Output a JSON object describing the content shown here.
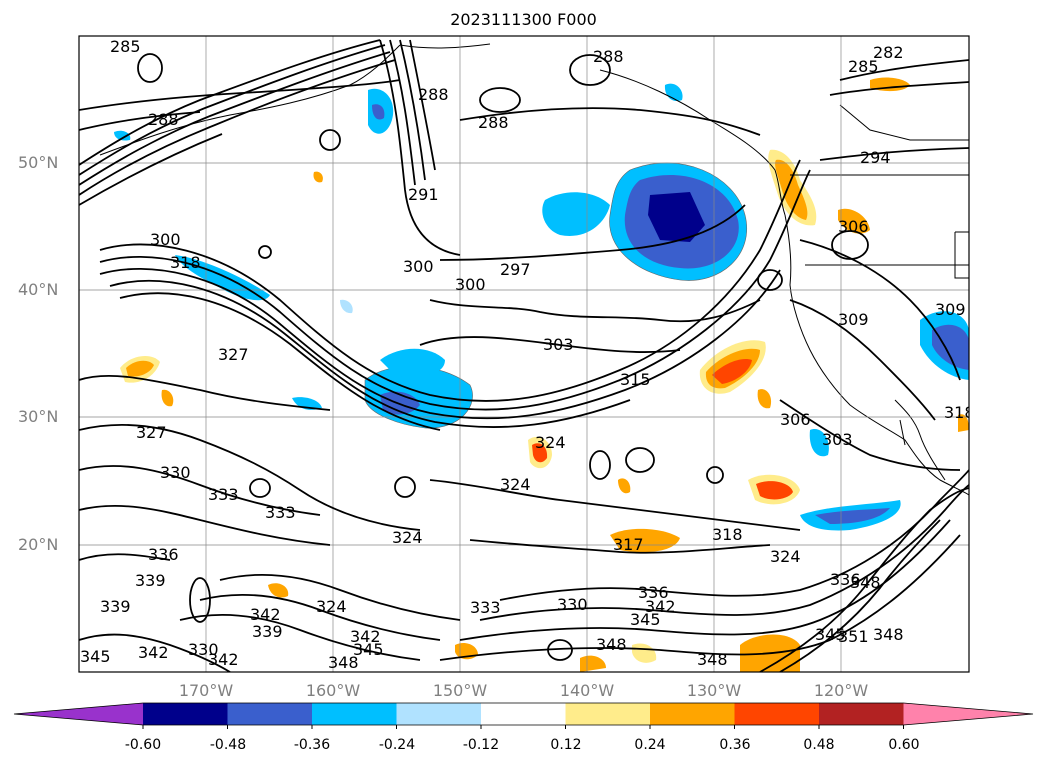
{
  "title": "2023111300 F000",
  "lat_labels": [
    "50°N",
    "40°N",
    "30°N",
    "20°N"
  ],
  "lon_labels": [
    "170°W",
    "160°W",
    "150°W",
    "140°W",
    "130°W",
    "120°W"
  ],
  "colorbar": {
    "ticks": [
      "-0.60",
      "-0.48",
      "-0.36",
      "-0.24",
      "-0.12",
      "0.12",
      "0.24",
      "0.36",
      "0.48",
      "0.60"
    ],
    "colors": [
      "#9932cc",
      "#00008b",
      "#3a5fcd",
      "#00bfff",
      "#b0e2ff",
      "#ffffff",
      "#ffec8b",
      "#ffa500",
      "#ff4500",
      "#b22222",
      "#ff82ab"
    ]
  },
  "contour_labels": [
    {
      "text": "285"
    },
    {
      "text": "282"
    },
    {
      "text": "285"
    },
    {
      "text": "288"
    },
    {
      "text": "288"
    },
    {
      "text": "288"
    },
    {
      "text": "288"
    },
    {
      "text": "294"
    },
    {
      "text": "291"
    },
    {
      "text": "300"
    },
    {
      "text": "300"
    },
    {
      "text": "300"
    },
    {
      "text": "297"
    },
    {
      "text": "306"
    },
    {
      "text": "309"
    },
    {
      "text": "303"
    },
    {
      "text": "315"
    },
    {
      "text": "327"
    },
    {
      "text": "327"
    },
    {
      "text": "324"
    },
    {
      "text": "330"
    },
    {
      "text": "333"
    },
    {
      "text": "333"
    },
    {
      "text": "324"
    },
    {
      "text": "324"
    },
    {
      "text": "306"
    },
    {
      "text": "303"
    },
    {
      "text": "318"
    },
    {
      "text": "318"
    },
    {
      "text": "324"
    },
    {
      "text": "317"
    },
    {
      "text": "336"
    },
    {
      "text": "339"
    },
    {
      "text": "339"
    },
    {
      "text": "324"
    },
    {
      "text": "333"
    },
    {
      "text": "330"
    },
    {
      "text": "336"
    },
    {
      "text": "342"
    },
    {
      "text": "345"
    },
    {
      "text": "348"
    },
    {
      "text": "348"
    },
    {
      "text": "348"
    },
    {
      "text": "342"
    },
    {
      "text": "339"
    },
    {
      "text": "342"
    },
    {
      "text": "330"
    },
    {
      "text": "342"
    },
    {
      "text": "345"
    },
    {
      "text": "348"
    },
    {
      "text": "342"
    },
    {
      "text": "345"
    },
    {
      "text": "351"
    },
    {
      "text": "348"
    },
    {
      "text": "336"
    },
    {
      "text": "345"
    },
    {
      "text": "309"
    },
    {
      "text": "318"
    }
  ]
}
